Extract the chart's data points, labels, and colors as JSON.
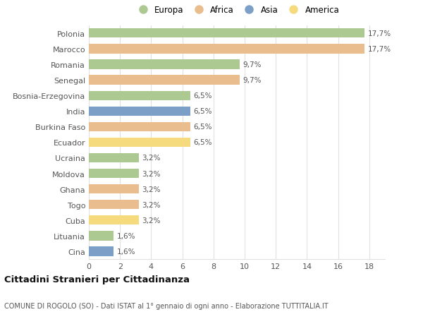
{
  "categories": [
    "Polonia",
    "Marocco",
    "Romania",
    "Senegal",
    "Bosnia-Erzegovina",
    "India",
    "Burkina Faso",
    "Ecuador",
    "Ucraina",
    "Moldova",
    "Ghana",
    "Togo",
    "Cuba",
    "Lituania",
    "Cina"
  ],
  "values": [
    17.7,
    17.7,
    9.7,
    9.7,
    6.5,
    6.5,
    6.5,
    6.5,
    3.2,
    3.2,
    3.2,
    3.2,
    3.2,
    1.6,
    1.6
  ],
  "labels": [
    "17,7%",
    "17,7%",
    "9,7%",
    "9,7%",
    "6,5%",
    "6,5%",
    "6,5%",
    "6,5%",
    "3,2%",
    "3,2%",
    "3,2%",
    "3,2%",
    "3,2%",
    "1,6%",
    "1,6%"
  ],
  "continents": [
    "Europa",
    "Africa",
    "Europa",
    "Africa",
    "Europa",
    "Asia",
    "Africa",
    "America",
    "Europa",
    "Europa",
    "Africa",
    "Africa",
    "America",
    "Europa",
    "Asia"
  ],
  "colors": {
    "Europa": "#adc992",
    "Africa": "#eabd8e",
    "Asia": "#7b9fc7",
    "America": "#f5db7e"
  },
  "legend_order": [
    "Europa",
    "Africa",
    "Asia",
    "America"
  ],
  "xlim": [
    0,
    19
  ],
  "xticks": [
    0,
    2,
    4,
    6,
    8,
    10,
    12,
    14,
    16,
    18
  ],
  "title": "Cittadini Stranieri per Cittadinanza",
  "subtitle": "COMUNE DI ROGOLO (SO) - Dati ISTAT al 1° gennaio di ogni anno - Elaborazione TUTTITALIA.IT",
  "bg_color": "#ffffff",
  "grid_color": "#e0e0e0",
  "bar_height": 0.6
}
